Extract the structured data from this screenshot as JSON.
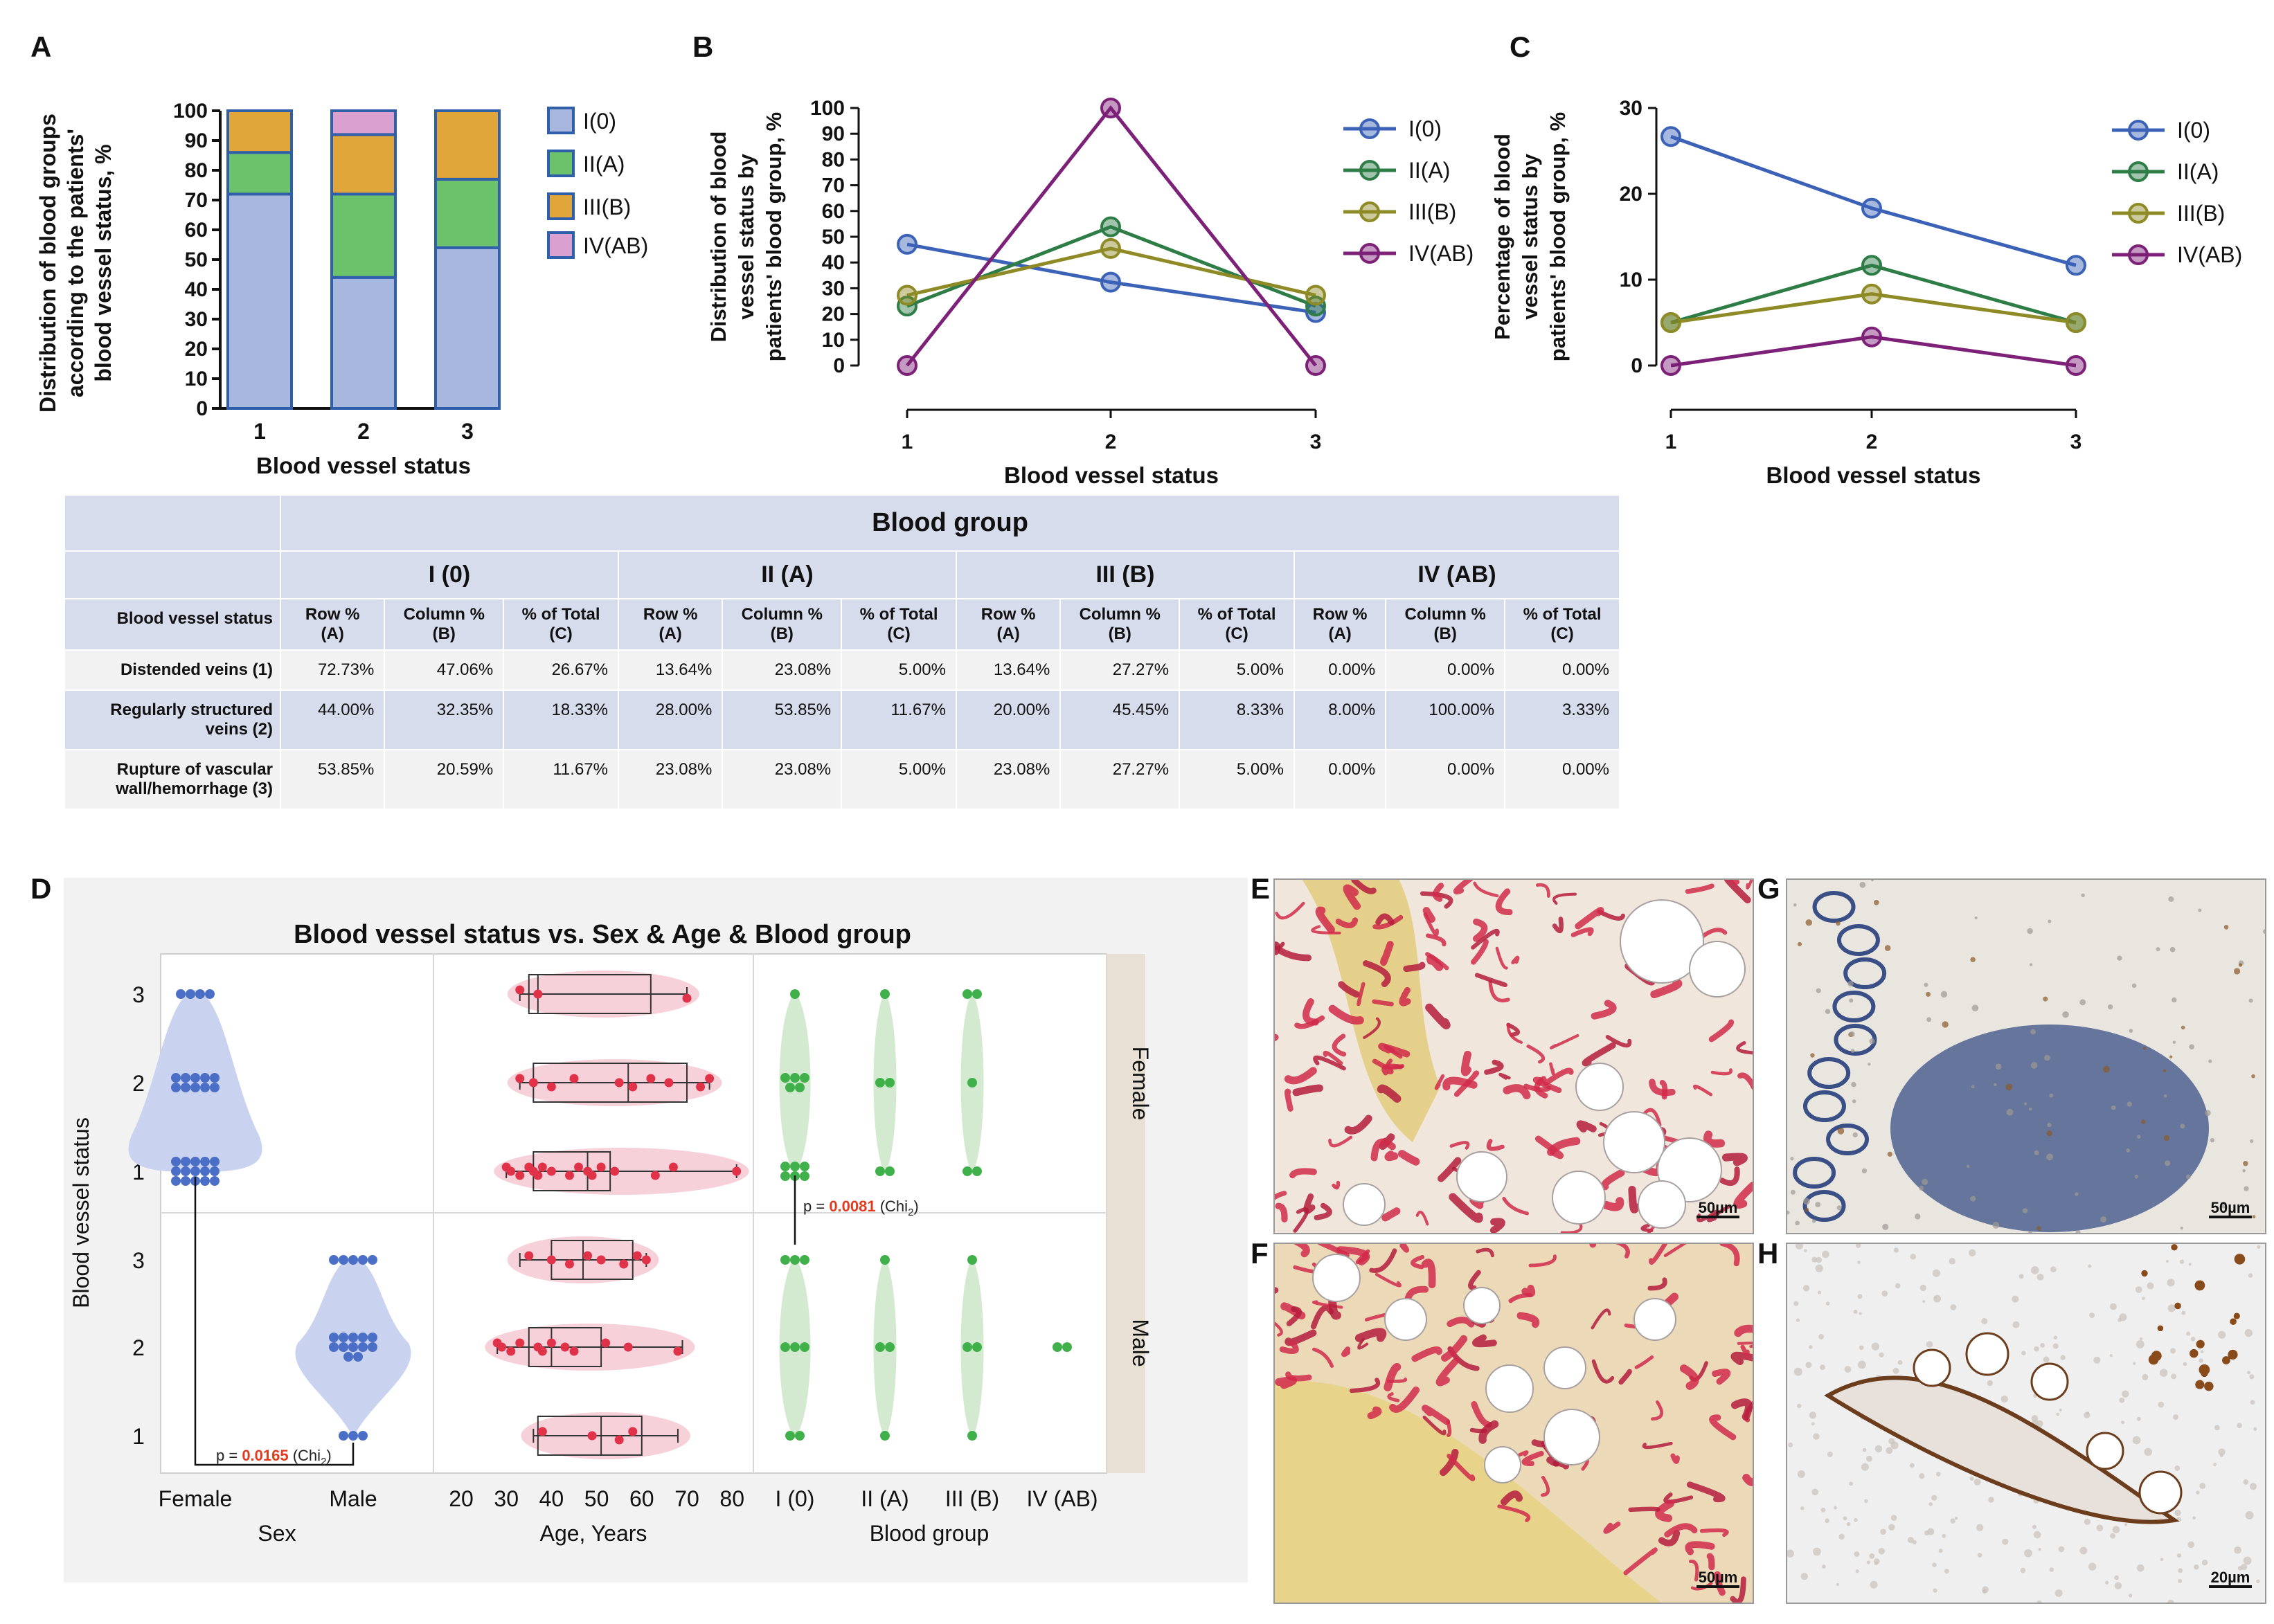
{
  "panel_letters": [
    "A",
    "B",
    "C",
    "D",
    "E",
    "F",
    "G",
    "H"
  ],
  "chart_data": [
    {
      "panel": "A",
      "type": "bar",
      "stacked": true,
      "categories": [
        "1",
        "2",
        "3"
      ],
      "series": [
        {
          "name": "I(0)",
          "color": "#a8b7dd",
          "values": [
            72,
            44,
            54
          ]
        },
        {
          "name": "II(A)",
          "color": "#6cc26a",
          "values": [
            14,
            28,
            23
          ]
        },
        {
          "name": "III(B)",
          "color": "#e0a63a",
          "values": [
            14,
            20,
            23
          ]
        },
        {
          "name": "IV(AB)",
          "color": "#d9a0d0",
          "values": [
            0,
            8,
            0
          ]
        }
      ],
      "title": "",
      "xlabel": "Blood vessel status",
      "ylabel": "Distribution of blood groups according to the patients' blood vessel status, %",
      "yticks": [
        "0",
        "10",
        "20",
        "30",
        "40",
        "50",
        "60",
        "70",
        "80",
        "90",
        "100"
      ],
      "ylim": [
        0,
        100
      ]
    },
    {
      "panel": "B",
      "type": "line",
      "categories": [
        "1",
        "2",
        "3"
      ],
      "series": [
        {
          "name": "I(0)",
          "color": "#3c62b8",
          "values": [
            47.06,
            32.35,
            20.59
          ]
        },
        {
          "name": "II(A)",
          "color": "#2e7d46",
          "values": [
            23.08,
            53.85,
            23.08
          ]
        },
        {
          "name": "III(B)",
          "color": "#8e8a25",
          "values": [
            27.27,
            45.45,
            27.27
          ]
        },
        {
          "name": "IV(AB)",
          "color": "#7d2077",
          "values": [
            0,
            100,
            0
          ]
        }
      ],
      "xlabel": "Blood vessel status",
      "ylabel": "Distribution of blood vessel status by patients' blood group, %",
      "yticks": [
        "0",
        "10",
        "20",
        "30",
        "40",
        "50",
        "60",
        "70",
        "80",
        "90",
        "100"
      ],
      "ylim": [
        0,
        100
      ]
    },
    {
      "panel": "C",
      "type": "line",
      "categories": [
        "1",
        "2",
        "3"
      ],
      "series": [
        {
          "name": "I(0)",
          "color": "#3c62b8",
          "values": [
            26.67,
            18.33,
            11.67
          ]
        },
        {
          "name": "II(A)",
          "color": "#2e7d46",
          "values": [
            5.0,
            11.67,
            5.0
          ]
        },
        {
          "name": "III(B)",
          "color": "#8e8a25",
          "values": [
            5.0,
            8.33,
            5.0
          ]
        },
        {
          "name": "IV(AB)",
          "color": "#7d2077",
          "values": [
            0,
            3.33,
            0
          ]
        }
      ],
      "xlabel": "Blood vessel status",
      "ylabel": "Percentage of blood vessel status by patients' blood group, %",
      "yticks": [
        "0",
        "10",
        "20",
        "30"
      ],
      "ylim": [
        0,
        30
      ]
    },
    {
      "panel": "D",
      "type": "scatter",
      "title": "Blood vessel status vs. Sex & Age & Blood group",
      "ylabel": "Blood vessel status",
      "yticks": [
        "1",
        "2",
        "3"
      ],
      "facets": [
        "Female",
        "Male"
      ],
      "columns": [
        {
          "xlabel": "Sex",
          "ticks": [
            "Female",
            "Male"
          ]
        },
        {
          "xlabel": "Age, Years",
          "ticks": [
            "20",
            "30",
            "40",
            "50",
            "60",
            "70",
            "80"
          ],
          "range": [
            20,
            80
          ]
        },
        {
          "xlabel": "Blood group",
          "ticks": [
            "I (0)",
            "II (A)",
            "III (B)",
            "IV (AB)"
          ]
        }
      ],
      "sex_counts": {
        "Female": {
          "1": 15,
          "2": 10,
          "3": 4
        },
        "Male": {
          "1": 3,
          "2": 12,
          "3": 5
        }
      },
      "age_points": {
        "Female": {
          "1": [
            30,
            31,
            33,
            35,
            36,
            37,
            38,
            40,
            44,
            46,
            48,
            49,
            51,
            54,
            63,
            67,
            81
          ],
          "2": [
            33,
            36,
            40,
            45,
            55,
            58,
            62,
            66,
            73,
            75
          ],
          "3": [
            33,
            37,
            70
          ]
        },
        "Male": {
          "1": [
            38,
            49,
            55,
            58
          ],
          "2": [
            28,
            29,
            31,
            33,
            37,
            38,
            40,
            43,
            45,
            52,
            57,
            68
          ],
          "3": [
            35,
            40,
            44,
            48,
            51,
            56,
            59,
            61
          ]
        }
      },
      "age_box": {
        "Female": {
          "1": [
            30,
            36,
            48,
            53,
            81
          ],
          "2": [
            33,
            36,
            57,
            70,
            75
          ],
          "3": [
            33,
            35,
            37,
            62,
            70
          ]
        },
        "Male": {
          "1": [
            36,
            37,
            51,
            60,
            68
          ],
          "2": [
            28,
            35,
            40,
            51,
            69
          ],
          "3": [
            33,
            40,
            47,
            58,
            61
          ]
        }
      },
      "blood_counts": {
        "Female": {
          "I (0)": {
            "1": 6,
            "2": 5,
            "3": 1
          },
          "II (A)": {
            "1": 2,
            "2": 2,
            "3": 1
          },
          "III (B)": {
            "1": 2,
            "2": 1,
            "3": 2
          },
          "IV (AB)": {
            "1": 0,
            "2": 0,
            "3": 0
          }
        },
        "Male": {
          "I (0)": {
            "1": 2,
            "2": 3,
            "3": 3
          },
          "II (A)": {
            "1": 1,
            "2": 2,
            "3": 1
          },
          "III (B)": {
            "1": 1,
            "2": 2,
            "3": 1
          },
          "IV (AB)": {
            "1": 0,
            "2": 2,
            "3": 0
          }
        }
      },
      "annotations": [
        {
          "text_pre": "p = ",
          "value": "0.0165",
          "text_post": " (Chi",
          "sub": "2",
          "close": ")"
        },
        {
          "text_pre": "p = ",
          "value": "0.0081",
          "text_post": " (Chi",
          "sub": "2",
          "close": ")"
        }
      ]
    }
  ],
  "table": {
    "title": "Blood group",
    "groups": [
      "I (0)",
      "II (A)",
      "III (B)",
      "IV (AB)"
    ],
    "status_header": "Blood vessel status",
    "sub_headers": [
      [
        "Row %",
        "(A)"
      ],
      [
        "Column %",
        "(B)"
      ],
      [
        "% of Total",
        "(C)"
      ]
    ],
    "rows": [
      {
        "label": [
          "Distended veins (1)"
        ],
        "values": [
          "72.73%",
          "47.06%",
          "26.67%",
          "13.64%",
          "23.08%",
          "5.00%",
          "13.64%",
          "27.27%",
          "5.00%",
          "0.00%",
          "0.00%",
          "0.00%"
        ]
      },
      {
        "label": [
          "Regularly structured",
          "veins (2)"
        ],
        "values": [
          "44.00%",
          "32.35%",
          "18.33%",
          "28.00%",
          "53.85%",
          "11.67%",
          "20.00%",
          "45.45%",
          "8.33%",
          "8.00%",
          "100.00%",
          "3.33%"
        ]
      },
      {
        "label": [
          "Rupture of vascular",
          "wall/hemorrhage (3)"
        ],
        "values": [
          "53.85%",
          "20.59%",
          "11.67%",
          "23.08%",
          "23.08%",
          "5.00%",
          "23.08%",
          "27.27%",
          "5.00%",
          "0.00%",
          "0.00%",
          "0.00%"
        ]
      }
    ]
  },
  "micrographs": [
    {
      "panel": "E",
      "scale": "50µm",
      "stain": "picrosirius red"
    },
    {
      "panel": "F",
      "scale": "50µm",
      "stain": "picrosirius red"
    },
    {
      "panel": "G",
      "scale": "50µm",
      "stain": "immunohistochemistry"
    },
    {
      "panel": "H",
      "scale": "20µm",
      "stain": "immunohistochemistry"
    }
  ]
}
